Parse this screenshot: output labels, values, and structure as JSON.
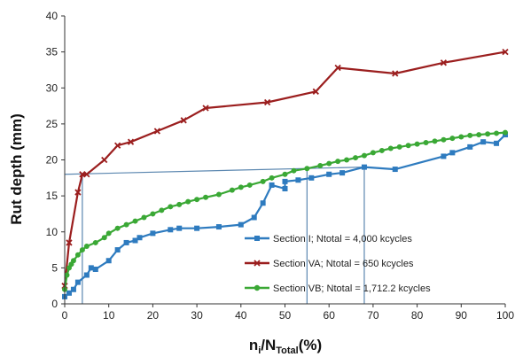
{
  "chart_data": {
    "type": "line",
    "title": "",
    "xlabel_main": "n",
    "xlabel_sub_i": "i",
    "xlabel_slash": "/N",
    "xlabel_sub_total": "Total",
    "xlabel_unit": "(%)",
    "ylabel": "Rut depth (mm)",
    "xlim": [
      0,
      100
    ],
    "ylim": [
      0,
      40
    ],
    "xticks": [
      0,
      10,
      20,
      30,
      40,
      50,
      60,
      70,
      80,
      90,
      100
    ],
    "yticks": [
      0,
      5,
      10,
      15,
      20,
      25,
      30,
      35,
      40
    ],
    "grid": false,
    "legend_position": "bottom-right",
    "series": [
      {
        "name": "Section I; Ntotal = 4,000 kcycles",
        "color": "#2e7bbf",
        "marker": "square",
        "x": [
          0,
          1,
          2,
          3,
          5,
          6,
          7,
          10,
          12,
          14,
          16,
          17,
          20,
          24,
          26,
          30,
          35,
          40,
          43,
          45,
          47,
          50,
          50,
          53,
          56,
          60,
          63,
          68,
          75,
          86,
          88,
          92,
          95,
          98,
          100
        ],
        "y": [
          1,
          1.5,
          2,
          3,
          4,
          5,
          4.8,
          6,
          7.5,
          8.5,
          8.8,
          9.2,
          9.8,
          10.3,
          10.5,
          10.5,
          10.7,
          11,
          12,
          14,
          16.5,
          16,
          17,
          17.2,
          17.5,
          18,
          18.2,
          19,
          18.7,
          20.5,
          21,
          21.8,
          22.5,
          22.3,
          23.5
        ]
      },
      {
        "name": "Section VA; Ntotal = 650 kcycles",
        "color": "#9b1e1e",
        "marker": "x",
        "x": [
          0,
          1,
          3,
          4,
          5,
          9,
          12,
          15,
          21,
          27,
          32,
          46,
          57,
          62,
          75,
          86,
          100
        ],
        "y": [
          2.5,
          8.5,
          15.5,
          18,
          18,
          20,
          22,
          22.5,
          24,
          25.5,
          27.2,
          28,
          29.5,
          32.8,
          32,
          33.5,
          35
        ]
      },
      {
        "name": "Section VB; Ntotal = 1,712.2 kcycles",
        "color": "#3aa835",
        "marker": "circle",
        "x": [
          0,
          0.5,
          1,
          1.5,
          2,
          3,
          4,
          5,
          7,
          9,
          10,
          12,
          14,
          16,
          18,
          20,
          22,
          24,
          26,
          28,
          30,
          32,
          35,
          38,
          40,
          42,
          45,
          47,
          50,
          52,
          55,
          58,
          60,
          62,
          64,
          66,
          68,
          70,
          72,
          74,
          76,
          78,
          80,
          82,
          84,
          86,
          88,
          90,
          92,
          94,
          96,
          98,
          100
        ],
        "y": [
          2,
          4,
          5,
          5.5,
          6,
          6.8,
          7.5,
          8,
          8.5,
          9.2,
          9.8,
          10.5,
          11,
          11.5,
          12,
          12.5,
          13,
          13.5,
          13.8,
          14.2,
          14.5,
          14.8,
          15.2,
          15.8,
          16.2,
          16.5,
          17,
          17.5,
          18,
          18.5,
          18.8,
          19.2,
          19.5,
          19.8,
          20,
          20.3,
          20.6,
          21,
          21.3,
          21.6,
          21.8,
          22,
          22.2,
          22.4,
          22.6,
          22.8,
          23,
          23.2,
          23.4,
          23.5,
          23.6,
          23.7,
          23.8
        ]
      }
    ],
    "reference_lines": [
      {
        "name": "horizontal-reference",
        "x1": 0,
        "y1": 18,
        "x2": 68,
        "y2": 19
      },
      {
        "name": "vertical-reference-4",
        "x1": 4,
        "y1": 0,
        "x2": 4,
        "y2": 18
      },
      {
        "name": "vertical-reference-55",
        "x1": 55,
        "y1": 0,
        "x2": 55,
        "y2": 18.7
      },
      {
        "name": "vertical-reference-68",
        "x1": 68,
        "y1": 0,
        "x2": 68,
        "y2": 19
      }
    ],
    "reference_color": "#5b87b0"
  }
}
